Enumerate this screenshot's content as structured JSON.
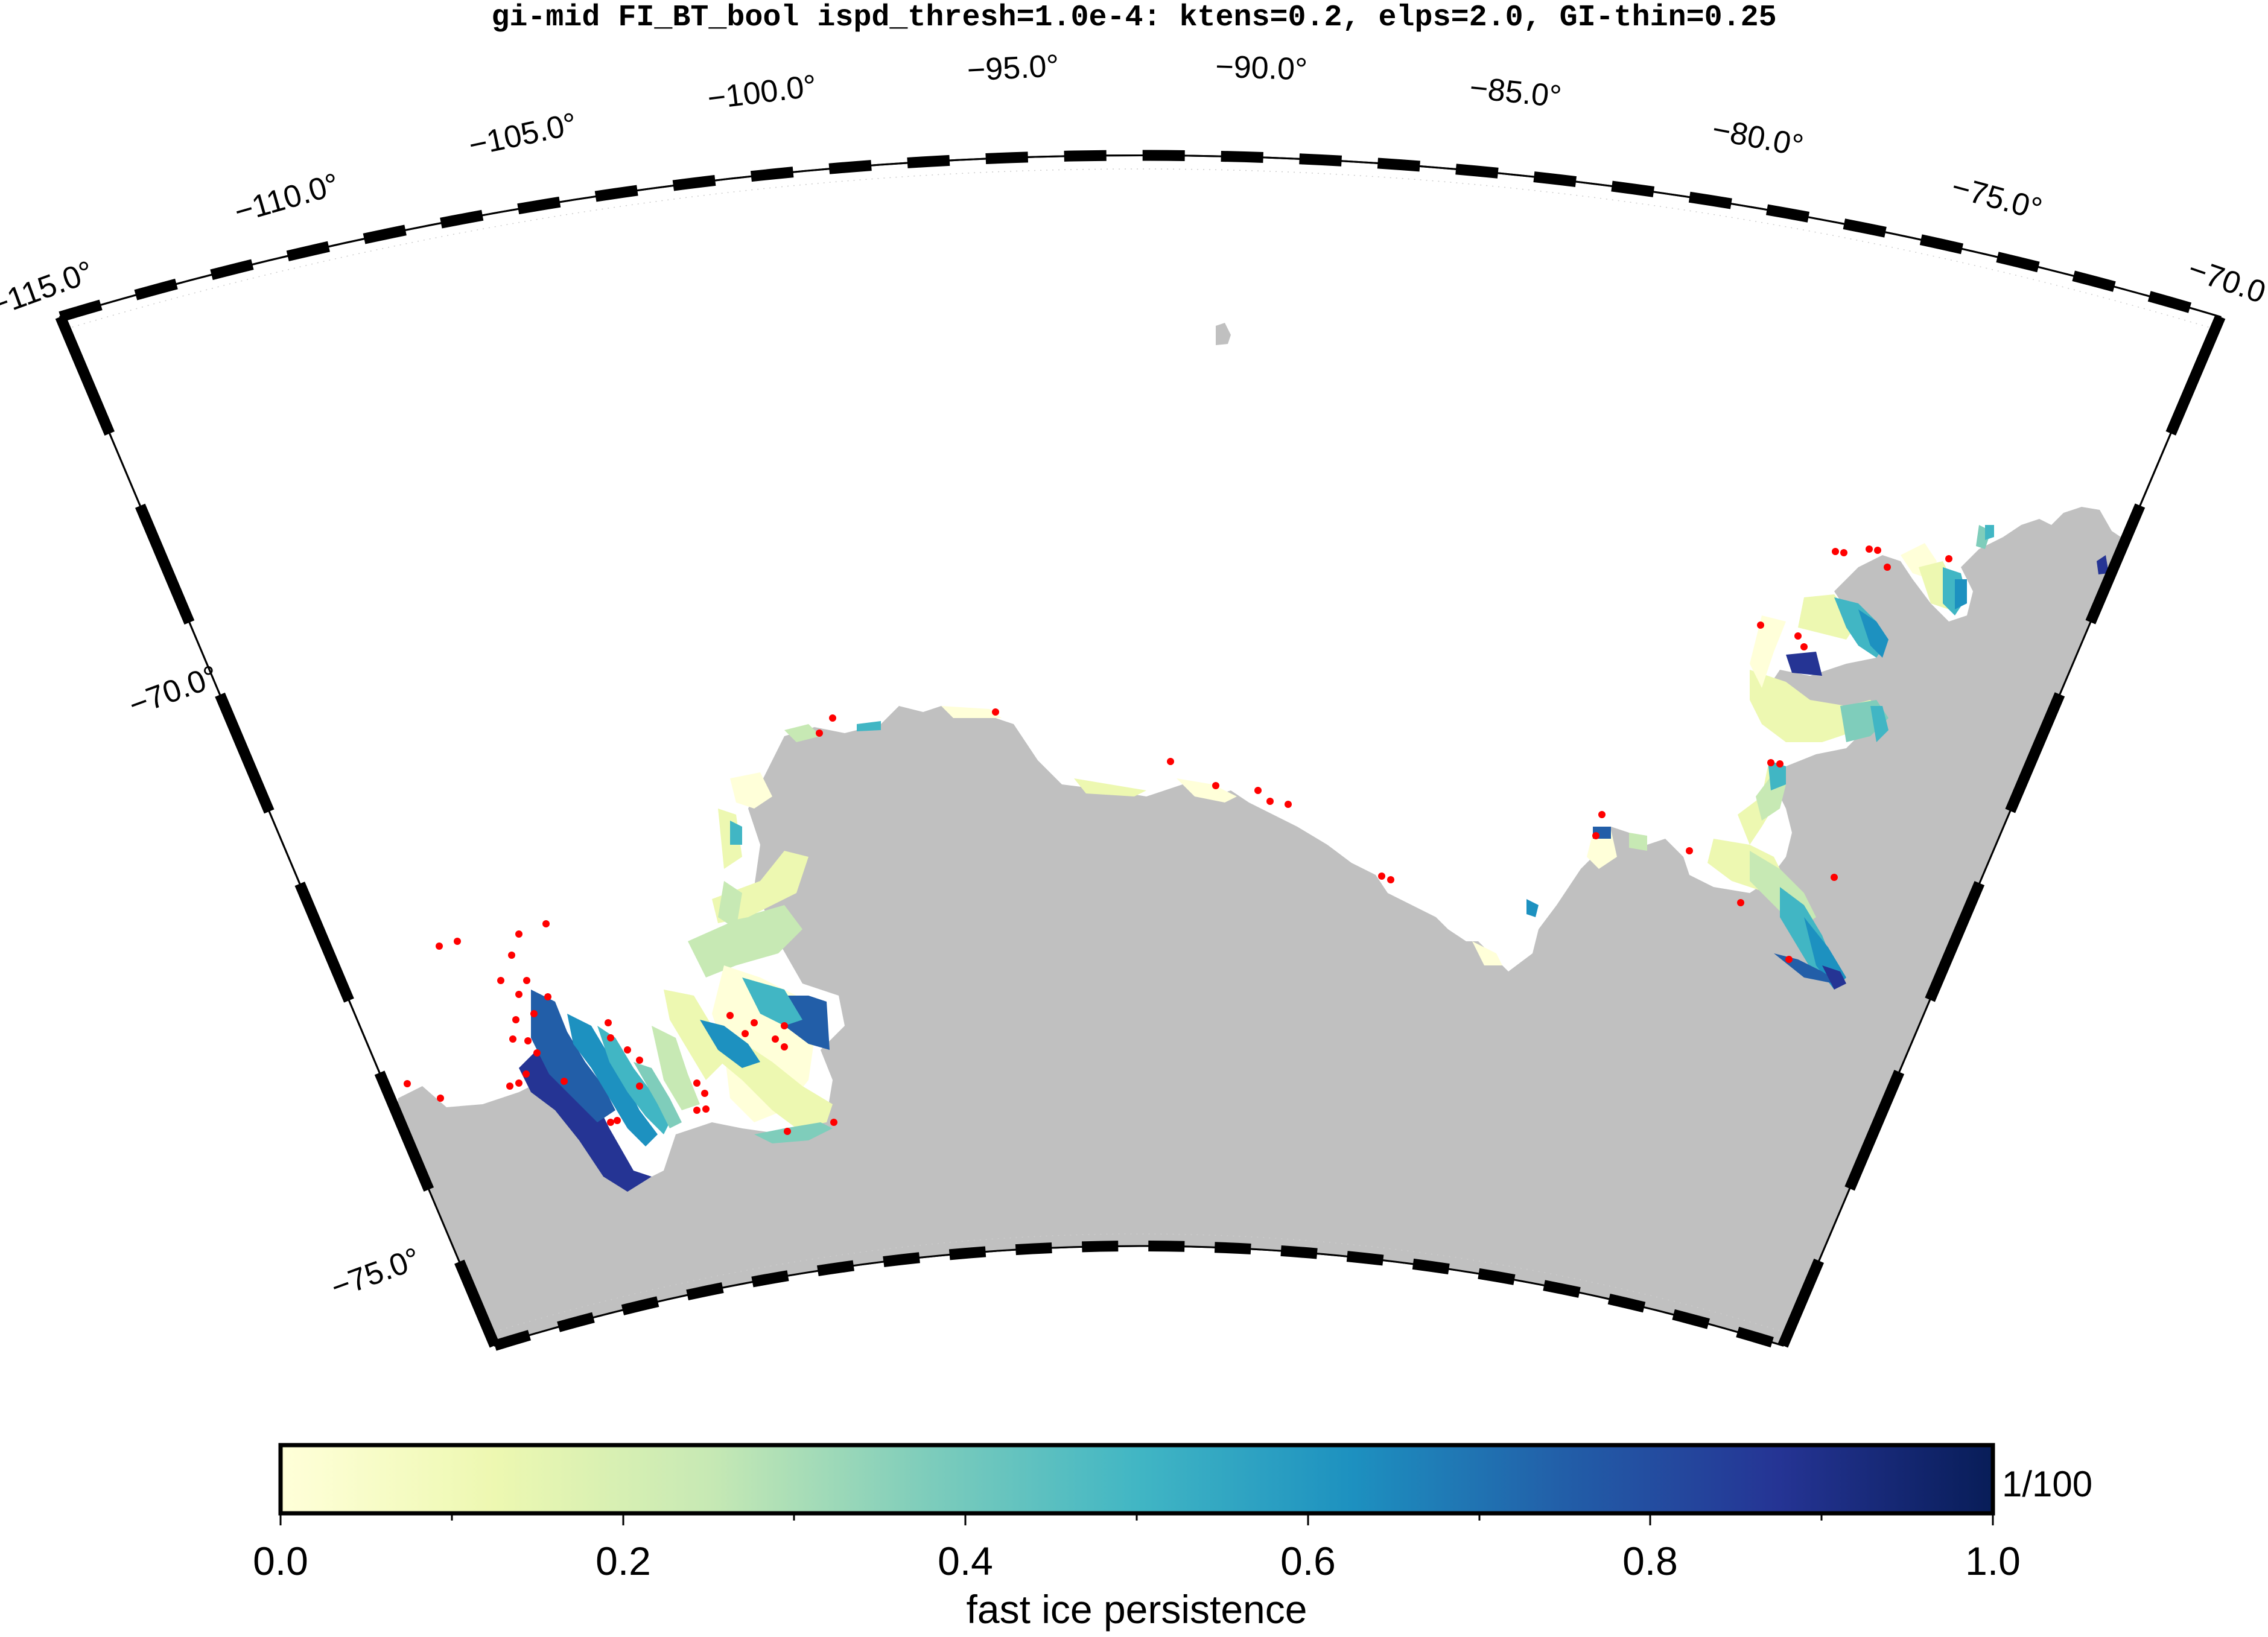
{
  "title": "gi-mid FI_BT_bool ispd_thresh=1.0e-4: ktens=0.2, elps=2.0, GI-thin=0.25",
  "map": {
    "longitude_labels": [
      "−115.0°",
      "−110.0°",
      "−105.0°",
      "−100.0°",
      "−95.0°",
      "−90.0°",
      "−85.0°",
      "−80.0°",
      "−75.0°",
      "−70.0°"
    ],
    "latitude_labels": [
      "−70.0°",
      "−75.0°"
    ],
    "land_color": "#c0c0c0",
    "grounded_iceberg_marker_color": "#ff0000"
  },
  "colorbar": {
    "label": "fast ice persistence",
    "unit": "1/100",
    "tick_labels": [
      "0.0",
      "0.2",
      "0.4",
      "0.6",
      "0.8",
      "1.0"
    ],
    "range": [
      0.0,
      1.0
    ],
    "colormap": [
      "#ffffd9",
      "#edf8b1",
      "#c7e9b4",
      "#7fcdbb",
      "#41b6c4",
      "#1d91c0",
      "#225ea8",
      "#253494",
      "#081d58"
    ]
  }
}
